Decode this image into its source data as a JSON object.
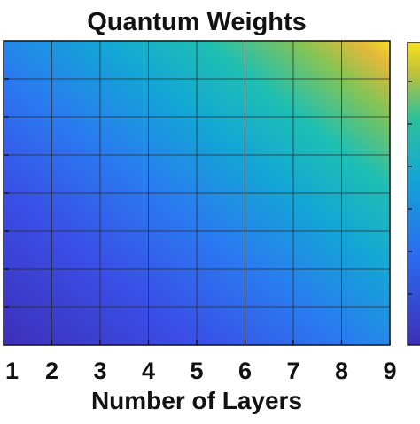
{
  "chart_data": {
    "type": "heatmap",
    "title": "Quantum Weights",
    "xlabel": "Number of Layers",
    "ylabel": "",
    "x_ticks": [
      "1",
      "2",
      "3",
      "4",
      "5",
      "6",
      "7",
      "8",
      "9"
    ],
    "xlim": [
      1,
      9
    ],
    "grid": true,
    "colormap": "parula",
    "colorbar": "right",
    "grid_color": "#2a2a2a",
    "text_color": "#111111"
  }
}
